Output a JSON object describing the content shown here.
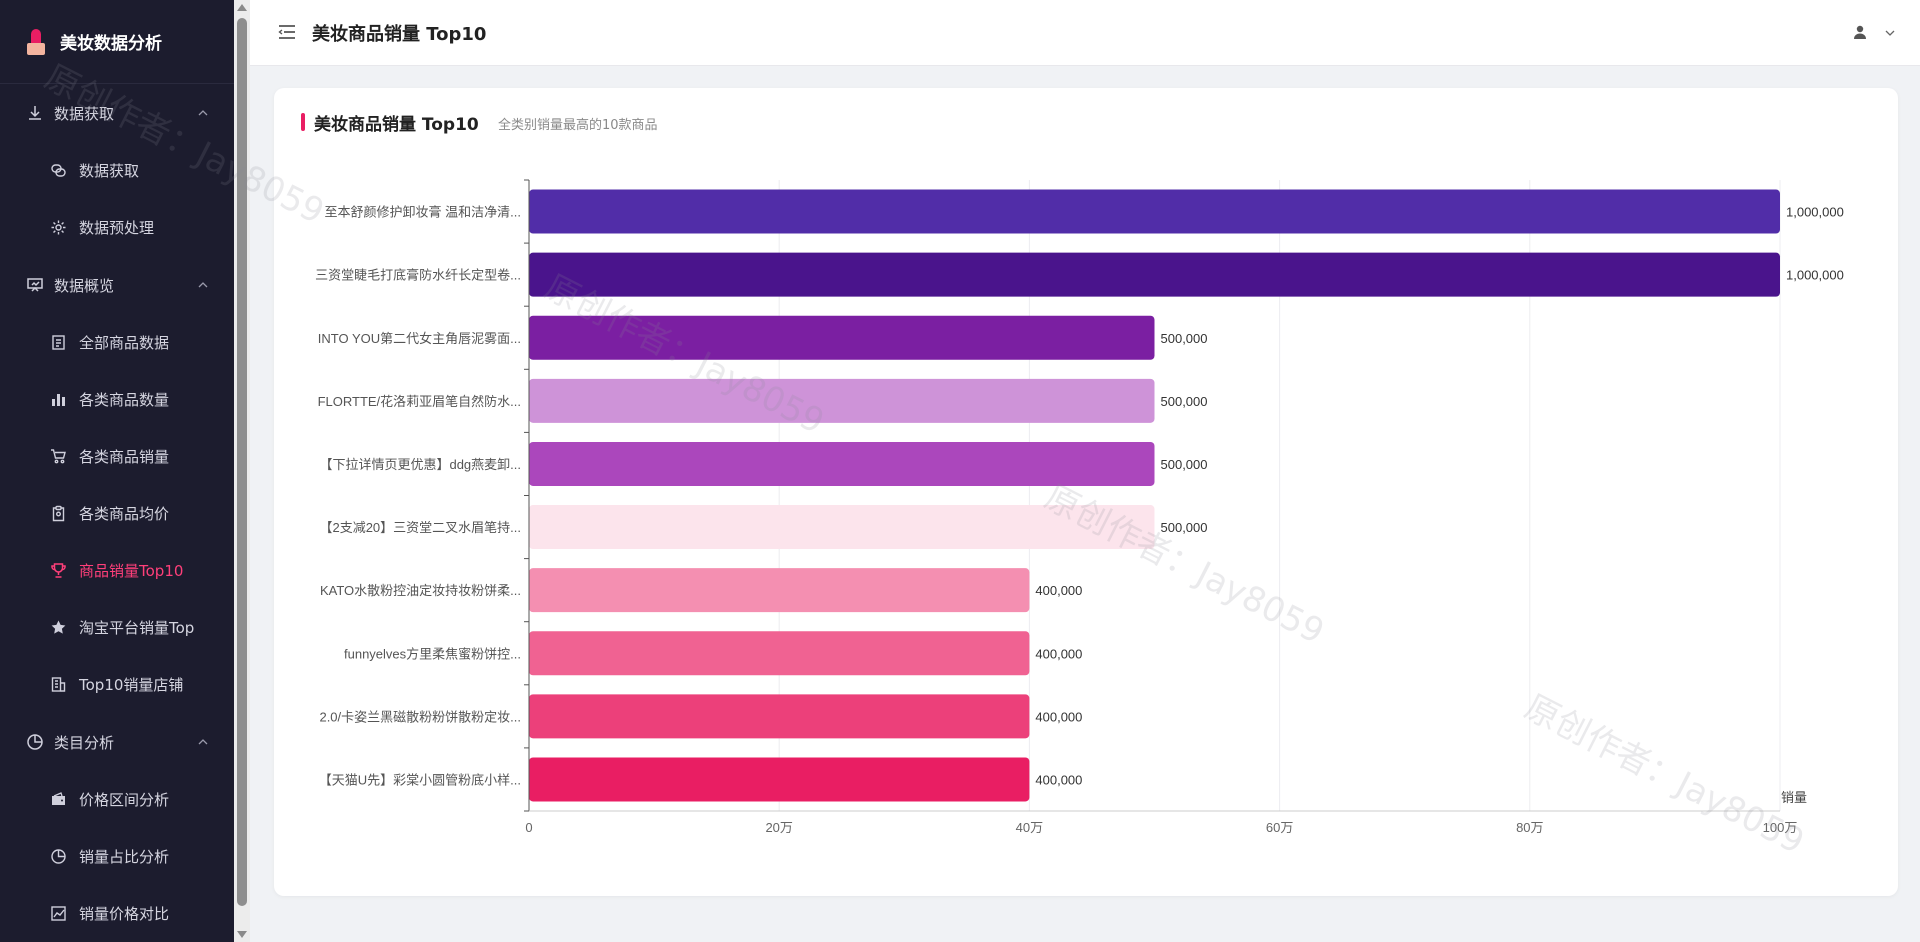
{
  "app": {
    "title": "美妆数据分析"
  },
  "sidebar": {
    "groups": [
      {
        "label": "数据获取",
        "icon": "download-icon",
        "items": [
          {
            "label": "数据获取",
            "icon": "link-icon"
          },
          {
            "label": "数据预处理",
            "icon": "gear-icon"
          }
        ]
      },
      {
        "label": "数据概览",
        "icon": "presentation-icon",
        "items": [
          {
            "label": "全部商品数据",
            "icon": "document-icon"
          },
          {
            "label": "各类商品数量",
            "icon": "bar-chart-icon"
          },
          {
            "label": "各类商品销量",
            "icon": "cart-icon"
          },
          {
            "label": "各类商品均价",
            "icon": "clipboard-icon"
          },
          {
            "label": "商品销量Top10",
            "icon": "trophy-icon",
            "active": true
          },
          {
            "label": "淘宝平台销量Top",
            "icon": "star-icon"
          },
          {
            "label": "Top10销量店铺",
            "icon": "building-icon"
          }
        ]
      },
      {
        "label": "类目分析",
        "icon": "pie-icon",
        "items": [
          {
            "label": "价格区间分析",
            "icon": "wallet-icon"
          },
          {
            "label": "销量占比分析",
            "icon": "pie-icon"
          },
          {
            "label": "销量价格对比",
            "icon": "line-chart-icon"
          }
        ]
      }
    ]
  },
  "header": {
    "title": "美妆商品销量 Top10"
  },
  "card": {
    "title": "美妆商品销量 Top10",
    "subtitle": "全类别销量最高的10款商品"
  },
  "watermark": {
    "text": "原创作者：Jay8059"
  },
  "chart_data": {
    "type": "bar",
    "orientation": "horizontal",
    "categories": [
      "至本舒颜修护卸妆膏 温和洁净清...",
      "三资堂睫毛打底膏防水纤长定型卷...",
      "INTO YOU第二代女主角唇泥雾面...",
      "FLORTTE/花洛莉亚眉笔自然防水...",
      "【下拉详情页更优惠】ddg燕麦卸...",
      "【2支减20】三资堂二叉水眉笔持...",
      "KATO水散粉控油定妆持妆粉饼柔...",
      "funnyelves方里柔焦蜜粉饼控...",
      "2.0/卡姿兰黑磁散粉粉饼散粉定妆...",
      "【天猫U先】彩棠小圆管粉底小样..."
    ],
    "values": [
      1000000,
      1000000,
      500000,
      500000,
      500000,
      500000,
      400000,
      400000,
      400000,
      400000
    ],
    "value_labels": [
      "1,000,000",
      "1,000,000",
      "500,000",
      "500,000",
      "500,000",
      "500,000",
      "400,000",
      "400,000",
      "400,000",
      "400,000"
    ],
    "colors": [
      "#512da8",
      "#4a148c",
      "#7b1fa2",
      "#ce93d8",
      "#ab47bc",
      "#fce4ec",
      "#f48fb1",
      "#f06292",
      "#ec407a",
      "#e91e63"
    ],
    "xticks": [
      "0",
      "20万",
      "40万",
      "60万",
      "80万",
      "100万"
    ],
    "xlim": [
      0,
      1000000
    ],
    "xlabel": "销量",
    "grid": true
  }
}
